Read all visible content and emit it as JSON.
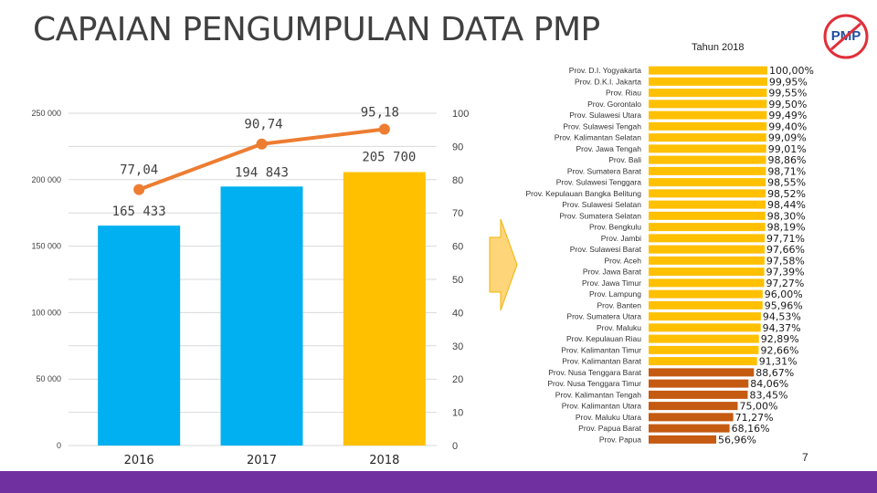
{
  "page": {
    "title": "CAPAIAN PENGUMPULAN DATA PMP",
    "year_label": "Tahun 2018",
    "page_number": "7",
    "logo_text": "PMP"
  },
  "colors": {
    "bar_blue": "#00b0f0",
    "bar_yellow": "#ffc000",
    "line_orange": "#ed7d31",
    "bar_low": "#c55a11",
    "accent_purple": "#7030a0"
  },
  "chart_data": [
    {
      "type": "bar",
      "categories": [
        "2016",
        "2017",
        "2018"
      ],
      "series": [
        {
          "values": [
            165433,
            194843,
            205700
          ],
          "value_labels": [
            "165 433",
            "194 843",
            "205 700"
          ],
          "colors": [
            "#00b0f0",
            "#00b0f0",
            "#ffc000"
          ]
        },
        {
          "type": "line",
          "axis": "secondary",
          "values": [
            77.04,
            90.74,
            95.18
          ],
          "value_labels": [
            "77,04",
            "90,74",
            "95,18"
          ],
          "color": "#ed7d31"
        }
      ],
      "ylim": [
        0,
        250000
      ],
      "y_ticks": [
        "0",
        "50 000",
        "100 000",
        "150 000",
        "200 000",
        "250 000"
      ],
      "y2lim": [
        0,
        100
      ],
      "y2_ticks": [
        "0",
        "10",
        "20",
        "30",
        "40",
        "50",
        "60",
        "70",
        "80",
        "90",
        "100"
      ],
      "grid": true
    },
    {
      "type": "bar",
      "orientation": "horizontal",
      "categories": [
        "Prov. D.I. Yogyakarta",
        "Prov. D.K.I. Jakarta",
        "Prov. Riau",
        "Prov. Gorontalo",
        "Prov. Sulawesi Utara",
        "Prov. Sulawesi Tengah",
        "Prov. Kalimantan Selatan",
        "Prov. Jawa Tengah",
        "Prov. Bali",
        "Prov. Sumatera Barat",
        "Prov. Sulawesi Tenggara",
        "Prov. Kepulauan Bangka Belitung",
        "Prov. Sulawesi Selatan",
        "Prov. Sumatera Selatan",
        "Prov. Bengkulu",
        "Prov. Jambi",
        "Prov. Sulawesi Barat",
        "Prov. Aceh",
        "Prov. Jawa Barat",
        "Prov. Jawa Timur",
        "Prov. Lampung",
        "Prov. Banten",
        "Prov. Sumatera Utara",
        "Prov. Maluku",
        "Prov. Kepulauan Riau",
        "Prov. Kalimantan Timur",
        "Prov. Kalimantan Barat",
        "Prov. Nusa Tenggara Barat",
        "Prov. Nusa Tenggara Timur",
        "Prov. Kalimantan Tengah",
        "Prov. Kalimantan Utara",
        "Prov. Maluku Utara",
        "Prov. Papua Barat",
        "Prov. Papua"
      ],
      "values": [
        100.0,
        99.95,
        99.55,
        99.5,
        99.49,
        99.4,
        99.09,
        99.01,
        98.86,
        98.71,
        98.55,
        98.52,
        98.44,
        98.3,
        98.19,
        97.71,
        97.66,
        97.58,
        97.39,
        97.27,
        96.0,
        95.96,
        94.53,
        94.37,
        92.89,
        92.66,
        91.31,
        88.67,
        84.06,
        83.45,
        75.0,
        71.27,
        68.16,
        56.96
      ],
      "value_labels": [
        "100,00%",
        "99,95%",
        "99,55%",
        "99,50%",
        "99,49%",
        "99,40%",
        "99,09%",
        "99,01%",
        "98,86%",
        "98,71%",
        "98,55%",
        "98,52%",
        "98,44%",
        "98,30%",
        "98,19%",
        "97,71%",
        "97,66%",
        "97,58%",
        "97,39%",
        "97,27%",
        "96,00%",
        "95,96%",
        "94,53%",
        "94,37%",
        "92,89%",
        "92,66%",
        "91,31%",
        "88,67%",
        "84,06%",
        "83,45%",
        "75,00%",
        "71,27%",
        "68,16%",
        "56,96%"
      ],
      "low_threshold_index": 27
    }
  ]
}
